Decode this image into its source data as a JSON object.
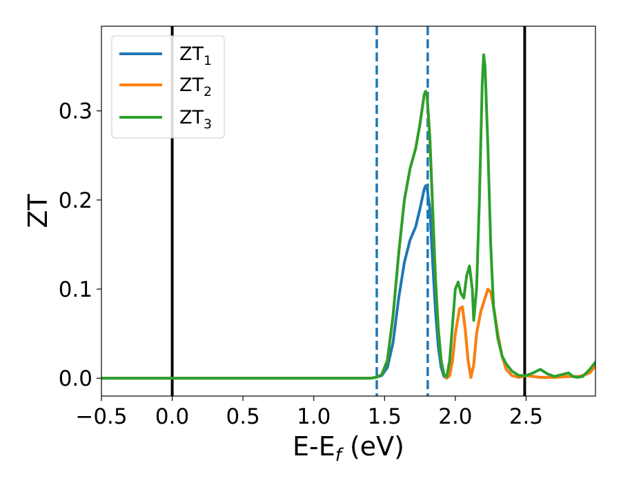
{
  "chart_data": {
    "type": "line",
    "xlabel": "E-E",
    "xlabel_sub": "f",
    "xlabel_unit": " (eV)",
    "ylabel": "ZT",
    "xlim": [
      -0.5,
      2.99
    ],
    "ylim": [
      -0.02,
      0.395
    ],
    "xticks": [
      -0.5,
      0.0,
      0.5,
      1.0,
      1.5,
      2.0,
      2.5
    ],
    "xtick_labels": [
      "−0.5",
      "0.0",
      "0.5",
      "1.0",
      "1.5",
      "2.0",
      "2.5"
    ],
    "yticks": [
      0.0,
      0.1,
      0.2,
      0.3
    ],
    "ytick_labels": [
      "0.0",
      "0.1",
      "0.2",
      "0.3"
    ],
    "grid": false,
    "legend_position": "top-left",
    "vlines": [
      {
        "x": 0.0,
        "color": "#000000",
        "style": "solid"
      },
      {
        "x": 2.49,
        "color": "#000000",
        "style": "solid"
      },
      {
        "x": 1.445,
        "color": "#1f77b4",
        "style": "dashed"
      },
      {
        "x": 1.805,
        "color": "#1f77b4",
        "style": "dashed"
      }
    ],
    "series": [
      {
        "name": "ZT",
        "sub": "1",
        "color": "#1f77b4",
        "points": [
          [
            -0.5,
            0
          ],
          [
            1.4,
            0
          ],
          [
            1.44,
            0.001
          ],
          [
            1.48,
            0.003
          ],
          [
            1.52,
            0.012
          ],
          [
            1.56,
            0.04
          ],
          [
            1.6,
            0.09
          ],
          [
            1.64,
            0.13
          ],
          [
            1.68,
            0.155
          ],
          [
            1.72,
            0.17
          ],
          [
            1.75,
            0.19
          ],
          [
            1.78,
            0.212
          ],
          [
            1.79,
            0.216
          ],
          [
            1.8,
            0.214
          ],
          [
            1.82,
            0.19
          ],
          [
            1.84,
            0.13
          ],
          [
            1.86,
            0.075
          ],
          [
            1.88,
            0.035
          ],
          [
            1.9,
            0.012
          ],
          [
            1.92,
            0.002
          ],
          [
            1.94,
            0
          ],
          [
            1.96,
            0.003
          ],
          [
            1.98,
            0.02
          ],
          [
            2.0,
            0.05
          ],
          [
            2.03,
            0.078
          ],
          [
            2.05,
            0.08
          ],
          [
            2.07,
            0.055
          ],
          [
            2.09,
            0.02
          ],
          [
            2.11,
            0.001
          ],
          [
            2.13,
            0.015
          ],
          [
            2.15,
            0.05
          ],
          [
            2.18,
            0.075
          ],
          [
            2.2,
            0.085
          ],
          [
            2.23,
            0.1
          ],
          [
            2.25,
            0.097
          ],
          [
            2.27,
            0.08
          ],
          [
            2.3,
            0.05
          ],
          [
            2.33,
            0.025
          ],
          [
            2.36,
            0.01
          ],
          [
            2.4,
            0.003
          ],
          [
            2.45,
            0.001
          ],
          [
            2.5,
            0.003
          ],
          [
            2.6,
            0.001
          ],
          [
            2.7,
            0.001
          ],
          [
            2.8,
            0.002
          ],
          [
            2.88,
            0.002
          ],
          [
            2.95,
            0.006
          ],
          [
            2.99,
            0.014
          ]
        ]
      },
      {
        "name": "ZT",
        "sub": "2",
        "color": "#ff7f0e",
        "points": [
          [
            -0.5,
            0
          ],
          [
            1.4,
            0
          ],
          [
            1.44,
            0.001
          ],
          [
            1.48,
            0.004
          ],
          [
            1.52,
            0.02
          ],
          [
            1.56,
            0.07
          ],
          [
            1.6,
            0.14
          ],
          [
            1.64,
            0.2
          ],
          [
            1.68,
            0.235
          ],
          [
            1.72,
            0.258
          ],
          [
            1.75,
            0.285
          ],
          [
            1.78,
            0.318
          ],
          [
            1.79,
            0.322
          ],
          [
            1.8,
            0.318
          ],
          [
            1.82,
            0.27
          ],
          [
            1.84,
            0.19
          ],
          [
            1.86,
            0.11
          ],
          [
            1.88,
            0.055
          ],
          [
            1.9,
            0.02
          ],
          [
            1.92,
            0.004
          ],
          [
            1.94,
            0
          ],
          [
            1.96,
            0.003
          ],
          [
            1.98,
            0.02
          ],
          [
            2.0,
            0.05
          ],
          [
            2.03,
            0.078
          ],
          [
            2.05,
            0.08
          ],
          [
            2.07,
            0.055
          ],
          [
            2.09,
            0.02
          ],
          [
            2.11,
            0.001
          ],
          [
            2.13,
            0.015
          ],
          [
            2.15,
            0.05
          ],
          [
            2.18,
            0.075
          ],
          [
            2.2,
            0.085
          ],
          [
            2.23,
            0.1
          ],
          [
            2.25,
            0.097
          ],
          [
            2.27,
            0.08
          ],
          [
            2.3,
            0.05
          ],
          [
            2.33,
            0.025
          ],
          [
            2.36,
            0.01
          ],
          [
            2.4,
            0.003
          ],
          [
            2.45,
            0.001
          ],
          [
            2.5,
            0.003
          ],
          [
            2.6,
            0.001
          ],
          [
            2.7,
            0.001
          ],
          [
            2.8,
            0.002
          ],
          [
            2.88,
            0.002
          ],
          [
            2.95,
            0.006
          ],
          [
            2.99,
            0.014
          ]
        ]
      },
      {
        "name": "ZT",
        "sub": "3",
        "color": "#2ca02c",
        "points": [
          [
            -0.5,
            0
          ],
          [
            1.4,
            0
          ],
          [
            1.44,
            0.001
          ],
          [
            1.48,
            0.004
          ],
          [
            1.52,
            0.02
          ],
          [
            1.56,
            0.07
          ],
          [
            1.6,
            0.14
          ],
          [
            1.64,
            0.2
          ],
          [
            1.68,
            0.235
          ],
          [
            1.72,
            0.258
          ],
          [
            1.75,
            0.285
          ],
          [
            1.78,
            0.318
          ],
          [
            1.79,
            0.322
          ],
          [
            1.8,
            0.318
          ],
          [
            1.82,
            0.27
          ],
          [
            1.84,
            0.19
          ],
          [
            1.86,
            0.11
          ],
          [
            1.88,
            0.055
          ],
          [
            1.9,
            0.02
          ],
          [
            1.92,
            0.004
          ],
          [
            1.94,
            0.002
          ],
          [
            1.96,
            0.02
          ],
          [
            1.98,
            0.06
          ],
          [
            2.0,
            0.1
          ],
          [
            2.02,
            0.108
          ],
          [
            2.04,
            0.095
          ],
          [
            2.06,
            0.09
          ],
          [
            2.08,
            0.115
          ],
          [
            2.1,
            0.126
          ],
          [
            2.12,
            0.1
          ],
          [
            2.13,
            0.065
          ],
          [
            2.15,
            0.1
          ],
          [
            2.17,
            0.2
          ],
          [
            2.19,
            0.33
          ],
          [
            2.2,
            0.363
          ],
          [
            2.21,
            0.35
          ],
          [
            2.23,
            0.26
          ],
          [
            2.25,
            0.15
          ],
          [
            2.27,
            0.08
          ],
          [
            2.3,
            0.045
          ],
          [
            2.33,
            0.025
          ],
          [
            2.36,
            0.016
          ],
          [
            2.4,
            0.008
          ],
          [
            2.45,
            0.003
          ],
          [
            2.5,
            0.003
          ],
          [
            2.55,
            0.006
          ],
          [
            2.6,
            0.01
          ],
          [
            2.65,
            0.005
          ],
          [
            2.7,
            0.002
          ],
          [
            2.75,
            0.004
          ],
          [
            2.8,
            0.006
          ],
          [
            2.83,
            0.002
          ],
          [
            2.86,
            0.001
          ],
          [
            2.9,
            0.002
          ],
          [
            2.95,
            0.01
          ],
          [
            2.99,
            0.018
          ]
        ]
      }
    ]
  }
}
